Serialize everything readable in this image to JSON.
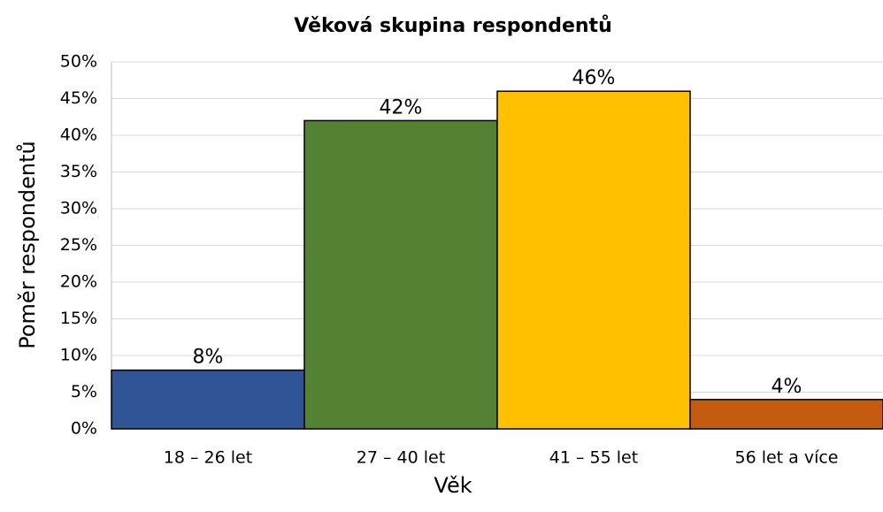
{
  "chart_data": {
    "type": "bar",
    "title": "Věková skupina respondentů",
    "x_label": "Věk",
    "y_label": "Poměr respondentů",
    "categories": [
      "18 – 26 let",
      "27 – 40 let",
      "41 – 55 let",
      "56 let a více"
    ],
    "values": [
      8,
      42,
      46,
      4
    ],
    "value_labels": [
      "8%",
      "42%",
      "46%",
      "4%"
    ],
    "colors": [
      "#2f5597",
      "#548235",
      "#ffc000",
      "#c55a11"
    ],
    "ylim": [
      0,
      50
    ],
    "yticks": [
      {
        "value": 0,
        "label": "0%"
      },
      {
        "value": 5,
        "label": "5%"
      },
      {
        "value": 10,
        "label": "10%"
      },
      {
        "value": 15,
        "label": "15%"
      },
      {
        "value": 20,
        "label": "20%"
      },
      {
        "value": 25,
        "label": "25%"
      },
      {
        "value": 30,
        "label": "30%"
      },
      {
        "value": 35,
        "label": "35%"
      },
      {
        "value": 40,
        "label": "40%"
      },
      {
        "value": 45,
        "label": "45%"
      },
      {
        "value": 50,
        "label": "50%"
      }
    ],
    "grid": true
  }
}
